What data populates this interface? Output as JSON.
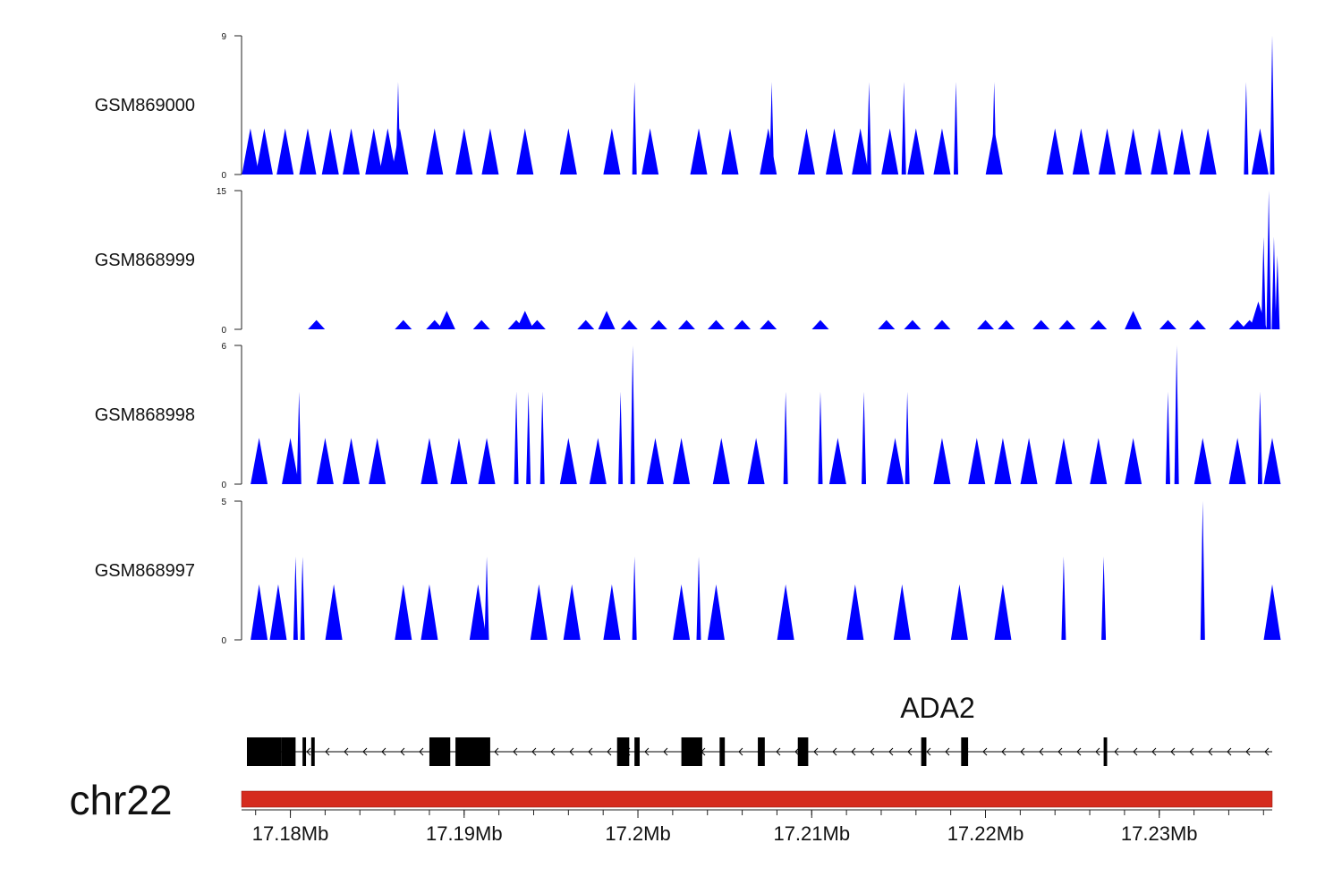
{
  "chart_data": {
    "type": "area",
    "x_unit": "Mb",
    "xlim": [
      17.1775,
      17.2365
    ],
    "tracks": [
      {
        "name": "GSM869000",
        "ylim": [
          0,
          9
        ],
        "y_ticks": [
          "0",
          "9"
        ],
        "color": "#0000ff",
        "peaks": [
          {
            "x": 17.1777,
            "y": 3
          },
          {
            "x": 17.1785,
            "y": 3
          },
          {
            "x": 17.1797,
            "y": 3
          },
          {
            "x": 17.181,
            "y": 3
          },
          {
            "x": 17.1823,
            "y": 3
          },
          {
            "x": 17.1835,
            "y": 3
          },
          {
            "x": 17.1848,
            "y": 3
          },
          {
            "x": 17.1856,
            "y": 3
          },
          {
            "x": 17.1863,
            "y": 3
          },
          {
            "x": 17.1883,
            "y": 3
          },
          {
            "x": 17.19,
            "y": 3
          },
          {
            "x": 17.1915,
            "y": 3
          },
          {
            "x": 17.1935,
            "y": 3
          },
          {
            "x": 17.196,
            "y": 3
          },
          {
            "x": 17.1985,
            "y": 3
          },
          {
            "x": 17.2007,
            "y": 3
          },
          {
            "x": 17.2035,
            "y": 3
          },
          {
            "x": 17.2053,
            "y": 3
          },
          {
            "x": 17.2075,
            "y": 3
          },
          {
            "x": 17.2097,
            "y": 3
          },
          {
            "x": 17.2113,
            "y": 3
          },
          {
            "x": 17.2128,
            "y": 3
          },
          {
            "x": 17.2145,
            "y": 3
          },
          {
            "x": 17.216,
            "y": 3
          },
          {
            "x": 17.2175,
            "y": 3
          },
          {
            "x": 17.2205,
            "y": 3
          },
          {
            "x": 17.224,
            "y": 3
          },
          {
            "x": 17.2255,
            "y": 3
          },
          {
            "x": 17.227,
            "y": 3
          },
          {
            "x": 17.2285,
            "y": 3
          },
          {
            "x": 17.23,
            "y": 3
          },
          {
            "x": 17.2313,
            "y": 3
          },
          {
            "x": 17.2328,
            "y": 3
          },
          {
            "x": 17.2358,
            "y": 3
          },
          {
            "x": 17.1862,
            "y": 6
          },
          {
            "x": 17.1998,
            "y": 6
          },
          {
            "x": 17.2077,
            "y": 6
          },
          {
            "x": 17.2133,
            "y": 6
          },
          {
            "x": 17.2153,
            "y": 6
          },
          {
            "x": 17.2183,
            "y": 6
          },
          {
            "x": 17.2205,
            "y": 6
          },
          {
            "x": 17.235,
            "y": 6
          },
          {
            "x": 17.2365,
            "y": 9
          }
        ]
      },
      {
        "name": "GSM868999",
        "ylim": [
          0,
          15
        ],
        "y_ticks": [
          "0",
          "15"
        ],
        "color": "#0000ff",
        "peaks": [
          {
            "x": 17.1815,
            "y": 1
          },
          {
            "x": 17.1865,
            "y": 1
          },
          {
            "x": 17.1883,
            "y": 1
          },
          {
            "x": 17.189,
            "y": 2
          },
          {
            "x": 17.191,
            "y": 1
          },
          {
            "x": 17.193,
            "y": 1
          },
          {
            "x": 17.1935,
            "y": 2
          },
          {
            "x": 17.1942,
            "y": 1
          },
          {
            "x": 17.197,
            "y": 1
          },
          {
            "x": 17.1982,
            "y": 2
          },
          {
            "x": 17.1995,
            "y": 1
          },
          {
            "x": 17.2012,
            "y": 1
          },
          {
            "x": 17.2028,
            "y": 1
          },
          {
            "x": 17.2045,
            "y": 1
          },
          {
            "x": 17.206,
            "y": 1
          },
          {
            "x": 17.2075,
            "y": 1
          },
          {
            "x": 17.2105,
            "y": 1
          },
          {
            "x": 17.2143,
            "y": 1
          },
          {
            "x": 17.2158,
            "y": 1
          },
          {
            "x": 17.2175,
            "y": 1
          },
          {
            "x": 17.22,
            "y": 1
          },
          {
            "x": 17.2212,
            "y": 1
          },
          {
            "x": 17.2232,
            "y": 1
          },
          {
            "x": 17.2247,
            "y": 1
          },
          {
            "x": 17.2265,
            "y": 1
          },
          {
            "x": 17.2285,
            "y": 2
          },
          {
            "x": 17.2305,
            "y": 1
          },
          {
            "x": 17.2322,
            "y": 1
          },
          {
            "x": 17.2345,
            "y": 1
          },
          {
            "x": 17.2352,
            "y": 1
          },
          {
            "x": 17.2357,
            "y": 3
          },
          {
            "x": 17.236,
            "y": 10
          },
          {
            "x": 17.2363,
            "y": 15
          },
          {
            "x": 17.2366,
            "y": 10
          },
          {
            "x": 17.2368,
            "y": 8
          }
        ]
      },
      {
        "name": "GSM868998",
        "ylim": [
          0,
          6
        ],
        "y_ticks": [
          "0",
          "6"
        ],
        "color": "#0000ff",
        "peaks": [
          {
            "x": 17.1782,
            "y": 2
          },
          {
            "x": 17.18,
            "y": 2
          },
          {
            "x": 17.1805,
            "y": 4
          },
          {
            "x": 17.182,
            "y": 2
          },
          {
            "x": 17.1835,
            "y": 2
          },
          {
            "x": 17.185,
            "y": 2
          },
          {
            "x": 17.188,
            "y": 2
          },
          {
            "x": 17.1897,
            "y": 2
          },
          {
            "x": 17.1913,
            "y": 2
          },
          {
            "x": 17.193,
            "y": 4
          },
          {
            "x": 17.1937,
            "y": 4
          },
          {
            "x": 17.1945,
            "y": 4
          },
          {
            "x": 17.196,
            "y": 2
          },
          {
            "x": 17.1977,
            "y": 2
          },
          {
            "x": 17.199,
            "y": 4
          },
          {
            "x": 17.1997,
            "y": 6
          },
          {
            "x": 17.201,
            "y": 2
          },
          {
            "x": 17.2025,
            "y": 2
          },
          {
            "x": 17.2048,
            "y": 2
          },
          {
            "x": 17.2068,
            "y": 2
          },
          {
            "x": 17.2085,
            "y": 4
          },
          {
            "x": 17.2105,
            "y": 4
          },
          {
            "x": 17.2115,
            "y": 2
          },
          {
            "x": 17.213,
            "y": 4
          },
          {
            "x": 17.2148,
            "y": 2
          },
          {
            "x": 17.2155,
            "y": 4
          },
          {
            "x": 17.2175,
            "y": 2
          },
          {
            "x": 17.2195,
            "y": 2
          },
          {
            "x": 17.221,
            "y": 2
          },
          {
            "x": 17.2225,
            "y": 2
          },
          {
            "x": 17.2245,
            "y": 2
          },
          {
            "x": 17.2265,
            "y": 2
          },
          {
            "x": 17.2285,
            "y": 2
          },
          {
            "x": 17.2305,
            "y": 4
          },
          {
            "x": 17.231,
            "y": 6
          },
          {
            "x": 17.2325,
            "y": 2
          },
          {
            "x": 17.2345,
            "y": 2
          },
          {
            "x": 17.2358,
            "y": 4
          },
          {
            "x": 17.2365,
            "y": 2
          }
        ]
      },
      {
        "name": "GSM868997",
        "ylim": [
          0,
          5
        ],
        "y_ticks": [
          "0",
          "5"
        ],
        "color": "#0000ff",
        "peaks": [
          {
            "x": 17.1782,
            "y": 2
          },
          {
            "x": 17.1793,
            "y": 2
          },
          {
            "x": 17.1803,
            "y": 3
          },
          {
            "x": 17.1807,
            "y": 3
          },
          {
            "x": 17.1825,
            "y": 2
          },
          {
            "x": 17.1865,
            "y": 2
          },
          {
            "x": 17.188,
            "y": 2
          },
          {
            "x": 17.1908,
            "y": 2
          },
          {
            "x": 17.1913,
            "y": 3
          },
          {
            "x": 17.1943,
            "y": 2
          },
          {
            "x": 17.1962,
            "y": 2
          },
          {
            "x": 17.1985,
            "y": 2
          },
          {
            "x": 17.1998,
            "y": 3
          },
          {
            "x": 17.2025,
            "y": 2
          },
          {
            "x": 17.2035,
            "y": 3
          },
          {
            "x": 17.2045,
            "y": 2
          },
          {
            "x": 17.2085,
            "y": 2
          },
          {
            "x": 17.2125,
            "y": 2
          },
          {
            "x": 17.2152,
            "y": 2
          },
          {
            "x": 17.2185,
            "y": 2
          },
          {
            "x": 17.221,
            "y": 2
          },
          {
            "x": 17.2245,
            "y": 3
          },
          {
            "x": 17.2268,
            "y": 3
          },
          {
            "x": 17.2325,
            "y": 5
          },
          {
            "x": 17.2365,
            "y": 2
          }
        ]
      }
    ],
    "gene": {
      "name": "ADA2",
      "strand": "-",
      "exons": [
        {
          "start": 17.1775,
          "end": 17.1795
        },
        {
          "start": 17.1795,
          "end": 17.1803
        },
        {
          "start": 17.1807,
          "end": 17.1809
        },
        {
          "start": 17.1812,
          "end": 17.1814
        },
        {
          "start": 17.188,
          "end": 17.1892
        },
        {
          "start": 17.1895,
          "end": 17.1915
        },
        {
          "start": 17.1988,
          "end": 17.1995
        },
        {
          "start": 17.1998,
          "end": 17.2001
        },
        {
          "start": 17.2025,
          "end": 17.2037
        },
        {
          "start": 17.2047,
          "end": 17.205
        },
        {
          "start": 17.2069,
          "end": 17.2073
        },
        {
          "start": 17.2092,
          "end": 17.2098
        },
        {
          "start": 17.2163,
          "end": 17.2166
        },
        {
          "start": 17.2186,
          "end": 17.219
        },
        {
          "start": 17.2268,
          "end": 17.227
        }
      ],
      "transcript_start": 17.1775,
      "transcript_end": 17.2365
    },
    "chromosome": "chr22",
    "x_ticks": [
      {
        "value": 17.18,
        "label": "17.18Mb"
      },
      {
        "value": 17.19,
        "label": "17.19Mb"
      },
      {
        "value": 17.2,
        "label": "17.2Mb"
      },
      {
        "value": 17.21,
        "label": "17.21Mb"
      },
      {
        "value": 17.22,
        "label": "17.22Mb"
      },
      {
        "value": 17.23,
        "label": "17.23Mb"
      }
    ],
    "colors": {
      "signal": "#0000ff",
      "ideogram": "#d52b1e",
      "gene": "#000000"
    }
  }
}
